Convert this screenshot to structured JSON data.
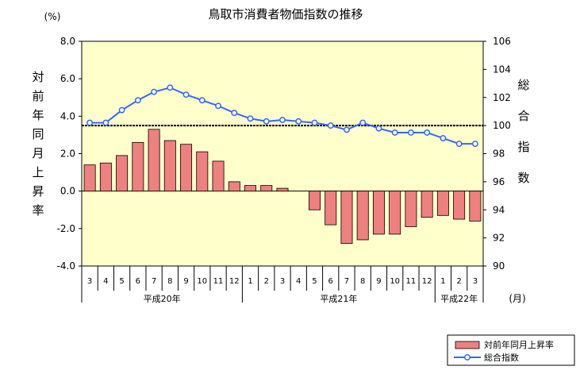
{
  "chart_data": {
    "type": "bar",
    "title": "鳥取市消費者物価指数の推移",
    "left_axis": {
      "unit": "(%)",
      "label": "対前年同月上昇率",
      "ylim": [
        -4.0,
        8.0
      ],
      "ticks": [
        "8.0",
        "6.0",
        "4.0",
        "2.0",
        "0.0",
        "-2.0",
        "-4.0"
      ]
    },
    "right_axis": {
      "label": "総合指数",
      "ylim": [
        90,
        106
      ],
      "ticks": [
        "106",
        "104",
        "102",
        "100",
        "98",
        "96",
        "94",
        "92",
        "90"
      ]
    },
    "x_unit": "(月)",
    "categories": [
      "3",
      "4",
      "5",
      "6",
      "7",
      "8",
      "9",
      "10",
      "11",
      "12",
      "1",
      "2",
      "3",
      "4",
      "5",
      "6",
      "7",
      "8",
      "9",
      "10",
      "11",
      "12",
      "1",
      "2",
      "3"
    ],
    "year_groups": [
      {
        "label": "平成20年",
        "start": 0,
        "count": 10
      },
      {
        "label": "平成21年",
        "start": 10,
        "count": 12
      },
      {
        "label": "平成22年",
        "start": 22,
        "count": 3
      }
    ],
    "reference_line": {
      "value": 100,
      "axis": "right",
      "style": "dashed"
    },
    "series": [
      {
        "name": "対前年同月上昇率",
        "type": "bar",
        "axis": "left",
        "color": "#ee8080",
        "values": [
          1.4,
          1.5,
          1.9,
          2.6,
          3.3,
          2.7,
          2.5,
          2.1,
          1.6,
          0.5,
          0.3,
          0.3,
          0.15,
          0.0,
          -1.0,
          -1.8,
          -2.8,
          -2.6,
          -2.3,
          -2.3,
          -1.9,
          -1.4,
          -1.3,
          -1.5,
          -1.6
        ]
      },
      {
        "name": "総合指数",
        "type": "line",
        "axis": "right",
        "color": "#3366ff",
        "values": [
          100.2,
          100.2,
          101.1,
          101.8,
          102.4,
          102.7,
          102.2,
          101.8,
          101.4,
          100.9,
          100.5,
          100.3,
          100.4,
          100.3,
          100.2,
          100.0,
          99.7,
          100.2,
          99.8,
          99.5,
          99.5,
          99.5,
          99.1,
          98.7,
          98.7
        ]
      }
    ],
    "grid": false,
    "legend_position": "bottom-right",
    "colors": {
      "plot_bg": "#ffffcc",
      "bar_stroke": "#000000",
      "line_marker_fill": "#ffffff"
    }
  }
}
